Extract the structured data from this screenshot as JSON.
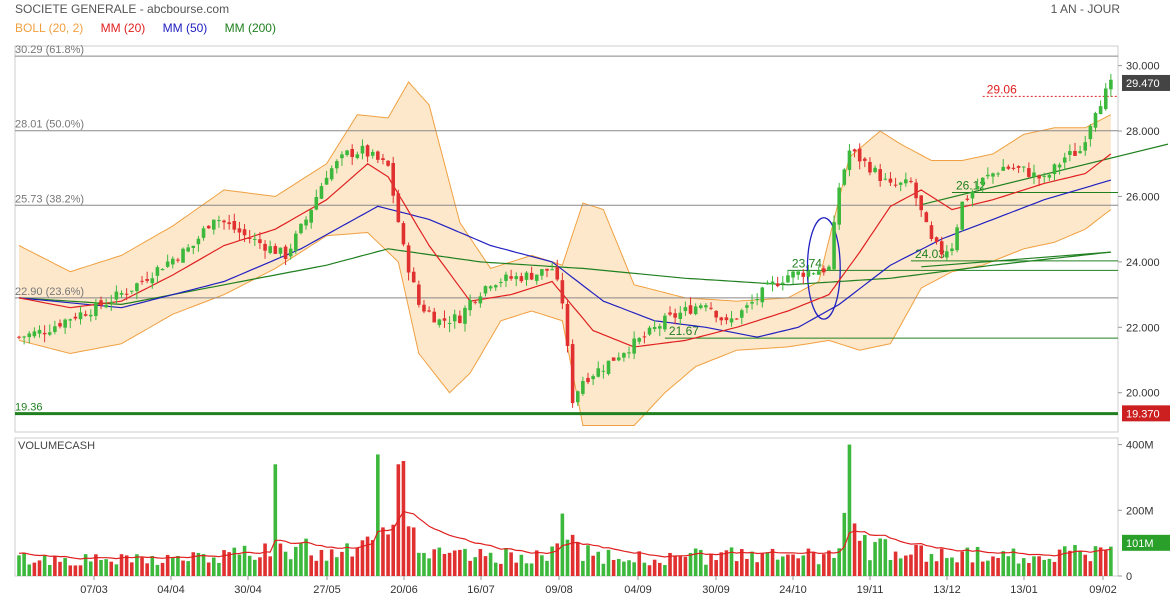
{
  "header": {
    "title": "SOCIETE GENERALE - abcbourse.com",
    "period": "1 AN - JOUR"
  },
  "legend": [
    {
      "label": "BOLL (20, 2)",
      "color": "#f0a040"
    },
    {
      "label": "MM (20)",
      "color": "#e02020"
    },
    {
      "label": "MM (50)",
      "color": "#2020c0"
    },
    {
      "label": "MM (200)",
      "color": "#208020"
    }
  ],
  "fibonacci": [
    {
      "label": "30.29  (61.8%)",
      "value": 30.29
    },
    {
      "label": "28.01  (50.0%)",
      "value": 28.01
    },
    {
      "label": "25.73  (38.2%)",
      "value": 25.73
    },
    {
      "label": "22.90  (23.6%)",
      "value": 22.9
    },
    {
      "label": "19.36",
      "value": 19.36
    }
  ],
  "annotations": {
    "resistance": "29.06",
    "a1": "23.74",
    "a2": "26.12",
    "a3": "24.03",
    "a4": "21.67"
  },
  "badges": {
    "last_price": "29.470",
    "low_price": "19.370",
    "last_volume": "101M"
  },
  "volume_title": "VOLUMECASH",
  "colors": {
    "up": "#3cb83c",
    "down": "#e03030",
    "band_fill": "#fde8cc",
    "band_line": "#f0a040",
    "mm20": "#e02020",
    "mm50": "#2020c0",
    "mm200": "#208020",
    "grid": "#999999"
  },
  "chart_data": {
    "type": "candlestick",
    "price_axis": {
      "ticks": [
        "30.000",
        "28.000",
        "26.000",
        "24.000",
        "22.000",
        "20.000"
      ],
      "values": [
        30,
        28,
        26,
        24,
        22,
        20
      ],
      "ylim": [
        18.8,
        30.6
      ]
    },
    "volume_axis": {
      "ticks": [
        "400M",
        "200M",
        "0"
      ],
      "values": [
        400,
        200,
        0
      ],
      "ylim": [
        0,
        420
      ]
    },
    "x_ticks": [
      "07/03",
      "04/04",
      "30/04",
      "27/05",
      "20/06",
      "16/07",
      "09/08",
      "04/09",
      "30/09",
      "24/10",
      "19/11",
      "13/12",
      "13/01",
      "09/02"
    ],
    "close_path": [
      [
        0,
        21.7
      ],
      [
        5,
        21.9
      ],
      [
        10,
        22.3
      ],
      [
        15,
        22.6
      ],
      [
        22,
        23.2
      ],
      [
        28,
        23.9
      ],
      [
        34,
        24.5
      ],
      [
        38,
        25.4
      ],
      [
        44,
        24.8
      ],
      [
        48,
        24.5
      ],
      [
        52,
        24.2
      ],
      [
        56,
        25.3
      ],
      [
        60,
        26.7
      ],
      [
        64,
        27.3
      ],
      [
        67,
        27.4
      ],
      [
        72,
        26.9
      ],
      [
        75,
        24.4
      ],
      [
        78,
        22.7
      ],
      [
        82,
        22.2
      ],
      [
        86,
        22.3
      ],
      [
        88,
        22.8
      ],
      [
        92,
        23.4
      ],
      [
        96,
        23.5
      ],
      [
        100,
        23.6
      ],
      [
        104,
        23.8
      ],
      [
        106,
        22.8
      ],
      [
        108,
        19.8
      ],
      [
        110,
        20.4
      ],
      [
        114,
        20.8
      ],
      [
        118,
        21.3
      ],
      [
        122,
        21.7
      ],
      [
        126,
        22.2
      ],
      [
        130,
        22.5
      ],
      [
        134,
        22.8
      ],
      [
        138,
        22.1
      ],
      [
        142,
        22.6
      ],
      [
        146,
        23.2
      ],
      [
        150,
        23.6
      ],
      [
        154,
        23.7
      ],
      [
        158,
        23.8
      ],
      [
        160,
        26.3
      ],
      [
        162,
        27.4
      ],
      [
        166,
        26.9
      ],
      [
        170,
        26.3
      ],
      [
        174,
        26.4
      ],
      [
        178,
        24.6
      ],
      [
        180,
        24.3
      ],
      [
        182,
        24.5
      ],
      [
        184,
        25.8
      ],
      [
        188,
        26.5
      ],
      [
        192,
        26.9
      ],
      [
        196,
        26.8
      ],
      [
        200,
        26.5
      ],
      [
        204,
        27.2
      ],
      [
        207,
        27.4
      ],
      [
        210,
        28.7
      ],
      [
        213,
        29.4
      ]
    ],
    "ma20_path": [
      [
        0,
        22.9
      ],
      [
        10,
        22.6
      ],
      [
        20,
        22.8
      ],
      [
        30,
        23.6
      ],
      [
        40,
        24.5
      ],
      [
        50,
        25.0
      ],
      [
        60,
        25.9
      ],
      [
        68,
        27.0
      ],
      [
        72,
        26.6
      ],
      [
        80,
        24.5
      ],
      [
        88,
        22.8
      ],
      [
        96,
        23.0
      ],
      [
        104,
        23.4
      ],
      [
        112,
        21.9
      ],
      [
        120,
        21.4
      ],
      [
        130,
        21.6
      ],
      [
        140,
        22.0
      ],
      [
        150,
        22.5
      ],
      [
        158,
        23.0
      ],
      [
        164,
        24.3
      ],
      [
        170,
        25.7
      ],
      [
        176,
        26.2
      ],
      [
        182,
        25.6
      ],
      [
        190,
        25.9
      ],
      [
        200,
        26.4
      ],
      [
        208,
        26.7
      ],
      [
        213,
        27.3
      ]
    ],
    "ma50_path": [
      [
        0,
        22.9
      ],
      [
        20,
        22.6
      ],
      [
        40,
        23.4
      ],
      [
        55,
        24.4
      ],
      [
        70,
        25.7
      ],
      [
        80,
        25.3
      ],
      [
        92,
        24.5
      ],
      [
        104,
        24.0
      ],
      [
        114,
        22.8
      ],
      [
        124,
        22.2
      ],
      [
        134,
        22.0
      ],
      [
        144,
        21.7
      ],
      [
        152,
        22.0
      ],
      [
        160,
        22.7
      ],
      [
        170,
        23.9
      ],
      [
        180,
        24.7
      ],
      [
        190,
        25.3
      ],
      [
        200,
        25.9
      ],
      [
        213,
        26.5
      ]
    ],
    "ma200_path": [
      [
        0,
        22.9
      ],
      [
        20,
        22.7
      ],
      [
        40,
        23.3
      ],
      [
        60,
        23.9
      ],
      [
        72,
        24.4
      ],
      [
        90,
        24.0
      ],
      [
        110,
        23.8
      ],
      [
        130,
        23.5
      ],
      [
        150,
        23.3
      ],
      [
        170,
        23.5
      ],
      [
        190,
        23.9
      ],
      [
        213,
        24.3
      ]
    ],
    "boll_upper_path": [
      [
        0,
        24.5
      ],
      [
        10,
        23.7
      ],
      [
        20,
        24.2
      ],
      [
        30,
        25.1
      ],
      [
        40,
        26.2
      ],
      [
        50,
        26.0
      ],
      [
        60,
        27.0
      ],
      [
        66,
        28.5
      ],
      [
        72,
        28.4
      ],
      [
        76,
        29.5
      ],
      [
        80,
        28.8
      ],
      [
        86,
        25.2
      ],
      [
        92,
        23.8
      ],
      [
        100,
        24.2
      ],
      [
        106,
        23.9
      ],
      [
        110,
        25.8
      ],
      [
        114,
        25.6
      ],
      [
        120,
        23.3
      ],
      [
        130,
        22.9
      ],
      [
        140,
        22.8
      ],
      [
        150,
        22.9
      ],
      [
        156,
        23.4
      ],
      [
        162,
        27.2
      ],
      [
        168,
        28.0
      ],
      [
        172,
        27.6
      ],
      [
        178,
        27.1
      ],
      [
        184,
        27.1
      ],
      [
        190,
        27.3
      ],
      [
        196,
        27.9
      ],
      [
        202,
        28.1
      ],
      [
        208,
        28.1
      ],
      [
        213,
        28.5
      ]
    ],
    "boll_lower_path": [
      [
        0,
        21.6
      ],
      [
        10,
        21.2
      ],
      [
        20,
        21.5
      ],
      [
        30,
        22.4
      ],
      [
        40,
        23.0
      ],
      [
        50,
        23.8
      ],
      [
        60,
        24.8
      ],
      [
        68,
        24.9
      ],
      [
        74,
        24.0
      ],
      [
        78,
        21.2
      ],
      [
        84,
        20.0
      ],
      [
        88,
        20.6
      ],
      [
        94,
        22.2
      ],
      [
        100,
        22.5
      ],
      [
        106,
        22.2
      ],
      [
        110,
        19.0
      ],
      [
        114,
        19.0
      ],
      [
        120,
        19.0
      ],
      [
        126,
        20.0
      ],
      [
        132,
        20.8
      ],
      [
        140,
        21.3
      ],
      [
        150,
        21.4
      ],
      [
        158,
        21.6
      ],
      [
        164,
        21.3
      ],
      [
        170,
        21.5
      ],
      [
        176,
        23.2
      ],
      [
        182,
        23.7
      ],
      [
        188,
        23.9
      ],
      [
        196,
        24.4
      ],
      [
        202,
        24.6
      ],
      [
        208,
        25.0
      ],
      [
        213,
        25.6
      ]
    ],
    "volume_profile": [
      [
        0,
        50
      ],
      [
        20,
        45
      ],
      [
        40,
        55
      ],
      [
        50,
        90
      ],
      [
        60,
        70
      ],
      [
        70,
        110
      ],
      [
        74,
        180
      ],
      [
        80,
        60
      ],
      [
        90,
        55
      ],
      [
        100,
        60
      ],
      [
        104,
        60
      ],
      [
        106,
        150
      ],
      [
        110,
        70
      ],
      [
        120,
        50
      ],
      [
        130,
        55
      ],
      [
        140,
        60
      ],
      [
        150,
        55
      ],
      [
        160,
        60
      ],
      [
        162,
        200
      ],
      [
        166,
        80
      ],
      [
        180,
        60
      ],
      [
        200,
        60
      ],
      [
        213,
        75
      ]
    ],
    "volume_spikes": [
      [
        50,
        340
      ],
      [
        70,
        370
      ],
      [
        74,
        340
      ],
      [
        75,
        350
      ],
      [
        106,
        190
      ],
      [
        162,
        400
      ],
      [
        163,
        160
      ]
    ],
    "trendlines": [
      {
        "color": "#208020",
        "from": [
          176,
          25.75
        ],
        "to": [
          230,
          27.6
        ]
      },
      {
        "color": "#208020",
        "from": [
          176,
          23.85
        ],
        "to": [
          213,
          24.3
        ]
      }
    ],
    "ellipse": {
      "center": [
        157,
        23.8
      ],
      "rx": 3.2,
      "ry": 1.55,
      "color": "#2020c0"
    },
    "levels": [
      {
        "value": 23.74,
        "color": "#208020",
        "from": 150
      },
      {
        "value": 26.12,
        "color": "#208020",
        "from": 182
      },
      {
        "value": 24.03,
        "color": "#208020",
        "from": 174
      },
      {
        "value": 21.67,
        "color": "#208020",
        "from": 126
      },
      {
        "value": 29.06,
        "color": "#e02020",
        "from": 188
      }
    ]
  }
}
